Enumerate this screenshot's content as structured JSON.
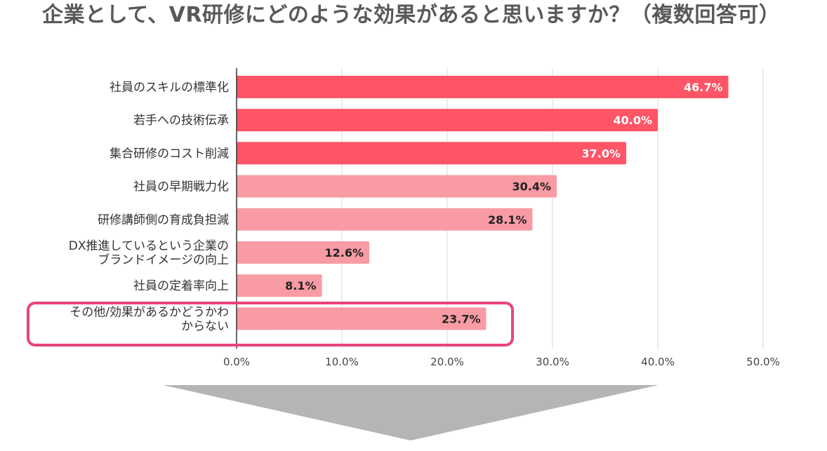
{
  "chart_data": {
    "type": "bar",
    "orientation": "horizontal",
    "title": "企業として、VR研修にどのような効果があると思いますか？（複数回答可）",
    "categories": [
      "社員のスキルの標準化",
      "若手への技術伝承",
      "集合研修のコスト削減",
      "社員の早期戦力化",
      "研修講師側の育成負担減",
      "DX推進しているという企業のブランドイメージの向上",
      "社員の定着率向上",
      "その他/効果があるかどうかわからない"
    ],
    "category_label_lines": [
      [
        "社員のスキルの標準化"
      ],
      [
        "若手への技術伝承"
      ],
      [
        "集合研修のコスト削減"
      ],
      [
        "社員の早期戦力化"
      ],
      [
        "研修講師側の育成負担減"
      ],
      [
        "DX推進しているという企業の",
        "ブランドイメージの向上"
      ],
      [
        "社員の定着率向上"
      ],
      [
        "その他/効果があるかどうかわ",
        "からない"
      ]
    ],
    "values": [
      46.7,
      40.0,
      37.0,
      30.4,
      28.1,
      12.6,
      8.1,
      23.7
    ],
    "value_labels": [
      "46.7%",
      "40.0%",
      "37.0%",
      "30.4%",
      "28.1%",
      "12.6%",
      "8.1%",
      "23.7%"
    ],
    "bar_colors": [
      "#ff5566",
      "#ff5566",
      "#ff5566",
      "#f99ba4",
      "#f99ba4",
      "#f99ba4",
      "#f99ba4",
      "#f99ba4"
    ],
    "value_label_colors": [
      "#ffffff",
      "#ffffff",
      "#ffffff",
      "#222222",
      "#222222",
      "#222222",
      "#222222",
      "#222222"
    ],
    "xlim": [
      0,
      50
    ],
    "xticks": [
      0,
      10,
      20,
      30,
      40,
      50
    ],
    "xtick_labels": [
      "0.0%",
      "10.0%",
      "20.0%",
      "30.0%",
      "40.0%",
      "50.0%"
    ],
    "grid": true,
    "highlighted_category": "その他/効果があるかどうかわからない",
    "highlight_color": "#e8457a",
    "arrow_color": "#b5b5b5"
  }
}
